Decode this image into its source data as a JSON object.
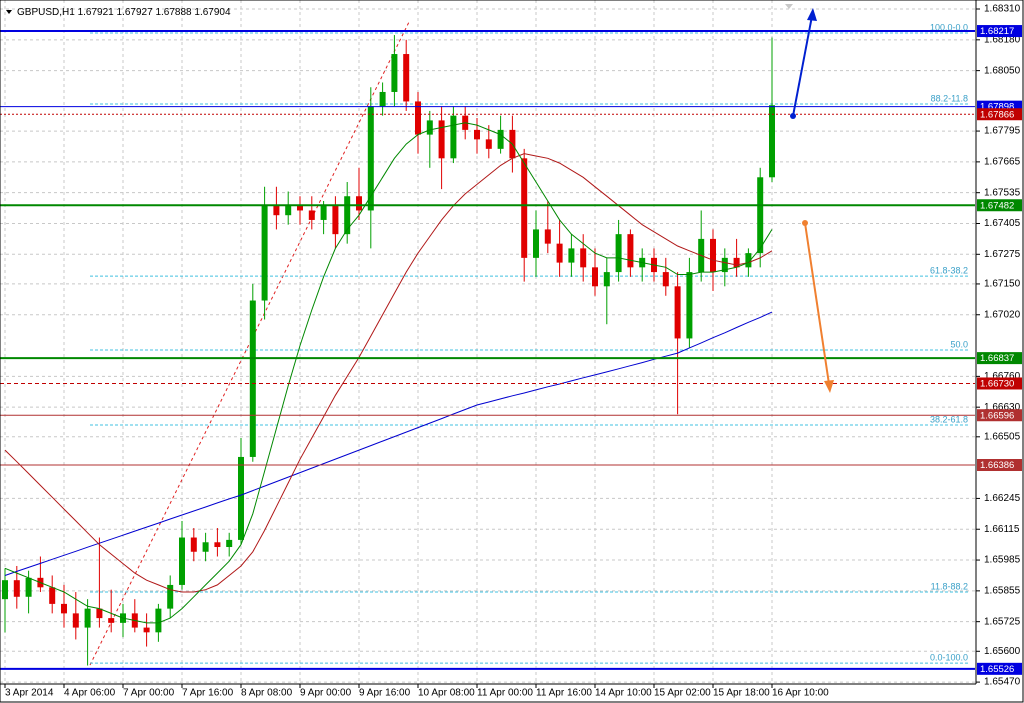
{
  "chart_data": {
    "type": "candlestick",
    "symbol": "GBPUSD,H1",
    "header_prices": [
      1.67921,
      1.67927,
      1.67888,
      1.67904
    ],
    "ylim": [
      1.65462,
      1.68348
    ],
    "yticks": [
      {
        "value": 1.6831,
        "label": "1.68310"
      },
      {
        "value": 1.6818,
        "label": "1.68180"
      },
      {
        "value": 1.6805,
        "label": "1.68050"
      },
      1.67795,
      1.67665,
      1.67535,
      1.67405,
      1.67275,
      {
        "value": 1.6715,
        "label": "1.67150"
      },
      {
        "value": 1.6702,
        "label": "1.67020"
      },
      {
        "value": 1.6676,
        "label": "1.66760"
      },
      {
        "value": 1.6663,
        "label": "1.66630"
      },
      1.66505,
      1.66245,
      1.66115,
      1.65985,
      1.65855,
      1.65725,
      {
        "value": 1.656,
        "label": "1.65600"
      },
      {
        "value": 1.6547,
        "label": "1.65470"
      }
    ],
    "grid": true,
    "up_color": "#00a000",
    "down_color": "#e00000",
    "categories": [
      "3 Apr 2014",
      null,
      null,
      null,
      null,
      "4 Apr 06:00",
      null,
      null,
      null,
      null,
      "7 Apr 00:00",
      null,
      null,
      null,
      null,
      "7 Apr 16:00",
      null,
      null,
      null,
      null,
      "8 Apr 08:00",
      null,
      null,
      null,
      null,
      "9 Apr 00:00",
      null,
      null,
      null,
      null,
      "9 Apr 16:00",
      null,
      null,
      null,
      null,
      "10 Apr 08:00",
      null,
      null,
      null,
      null,
      "11 Apr 00:00",
      null,
      null,
      null,
      null,
      "11 Apr 16:00",
      null,
      null,
      null,
      null,
      "14 Apr 10:00",
      null,
      null,
      null,
      null,
      "15 Apr 02:00",
      null,
      null,
      null,
      null,
      "15 Apr 18:00",
      null,
      null,
      null,
      null,
      "16 Apr 10:00"
    ],
    "open": [
      1.6582,
      1.659,
      1.6583,
      1.6591,
      1.6587,
      1.658,
      1.6576,
      1.657,
      1.6578,
      1.6574,
      1.6572,
      1.6576,
      1.657,
      1.6568,
      1.6578,
      1.6588,
      1.6608,
      1.6602,
      1.6606,
      1.6604,
      1.6607,
      1.6642,
      1.6708,
      1.6748,
      1.6744,
      1.6748,
      1.6746,
      1.6742,
      1.6748,
      1.6736,
      1.6752,
      1.6746,
      1.679,
      1.6796,
      1.6812,
      1.6792,
      1.6778,
      1.6784,
      1.6768,
      1.6786,
      1.678,
      1.6776,
      1.6772,
      1.678,
      1.6768,
      1.6726,
      1.6738,
      1.6732,
      1.6724,
      1.673,
      1.6722,
      1.6714,
      1.672,
      1.6736,
      1.6722,
      1.6726,
      1.672,
      1.6714,
      1.6692,
      1.672,
      1.6734,
      1.672,
      1.6726,
      1.6722,
      1.6728,
      1.676
    ],
    "high": [
      1.6595,
      1.6596,
      1.6594,
      1.66,
      1.6592,
      1.6588,
      1.6585,
      1.6582,
      1.6608,
      1.6586,
      1.658,
      1.6582,
      1.6576,
      1.658,
      1.6592,
      1.6615,
      1.6612,
      1.661,
      1.6612,
      1.661,
      1.665,
      1.6715,
      1.6756,
      1.6756,
      1.6754,
      1.6752,
      1.6752,
      1.675,
      1.6752,
      1.6758,
      1.6764,
      1.6798,
      1.68,
      1.682,
      1.6818,
      1.6796,
      1.6788,
      1.679,
      1.679,
      1.679,
      1.6785,
      1.6782,
      1.6786,
      1.6786,
      1.6772,
      1.6746,
      1.675,
      1.6742,
      1.6736,
      1.6736,
      1.673,
      1.6726,
      1.6742,
      1.6738,
      1.673,
      1.673,
      1.6726,
      1.672,
      1.6726,
      1.6746,
      1.6738,
      1.673,
      1.6734,
      1.673,
      1.6764,
      1.6819
    ],
    "low": [
      1.6568,
      1.6578,
      1.6576,
      1.6585,
      1.6576,
      1.657,
      1.6565,
      1.6554,
      1.657,
      1.6568,
      1.6566,
      1.6568,
      1.6562,
      1.6564,
      1.6574,
      1.6586,
      1.6598,
      1.6598,
      1.66,
      1.66,
      1.6605,
      1.664,
      1.67,
      1.6738,
      1.674,
      1.674,
      1.6738,
      1.6736,
      1.673,
      1.6732,
      1.6742,
      1.673,
      1.6786,
      1.679,
      1.6788,
      1.677,
      1.6764,
      1.6755,
      1.6766,
      1.6776,
      1.677,
      1.6768,
      1.677,
      1.6762,
      1.6716,
      1.6718,
      1.6728,
      1.6718,
      1.6718,
      1.6716,
      1.671,
      1.6698,
      1.6716,
      1.6718,
      1.6716,
      1.6716,
      1.671,
      1.666,
      1.6688,
      1.6716,
      1.6712,
      1.6714,
      1.6718,
      1.6718,
      1.6722,
      1.6758
    ],
    "close": [
      1.659,
      1.6583,
      1.6591,
      1.6587,
      1.658,
      1.6576,
      1.657,
      1.6578,
      1.6574,
      1.6572,
      1.6576,
      1.657,
      1.6568,
      1.6578,
      1.6588,
      1.6608,
      1.6602,
      1.6606,
      1.6604,
      1.6607,
      1.6642,
      1.6708,
      1.6748,
      1.6744,
      1.6748,
      1.6746,
      1.6742,
      1.6748,
      1.6736,
      1.6752,
      1.6746,
      1.679,
      1.6796,
      1.6812,
      1.6792,
      1.6778,
      1.6784,
      1.6768,
      1.6786,
      1.678,
      1.6776,
      1.6772,
      1.678,
      1.6768,
      1.6726,
      1.6738,
      1.6732,
      1.6724,
      1.673,
      1.6722,
      1.6714,
      1.672,
      1.6736,
      1.6722,
      1.6726,
      1.672,
      1.6714,
      1.6692,
      1.672,
      1.6734,
      1.672,
      1.6726,
      1.6722,
      1.6728,
      1.676,
      1.67904
    ],
    "lines": [
      {
        "color": "#0000d0",
        "values": [
          1.6592,
          1.65937,
          1.65954,
          1.65971,
          1.65988,
          1.66005,
          1.66022,
          1.66039,
          1.66056,
          1.66073,
          1.6609,
          1.66107,
          1.66124,
          1.66141,
          1.66158,
          1.66175,
          1.66192,
          1.66209,
          1.66226,
          1.66243,
          1.66259,
          1.66278,
          1.66297,
          1.66316,
          1.66335,
          1.66354,
          1.66373,
          1.66392,
          1.66411,
          1.6643,
          1.66449,
          1.66468,
          1.66487,
          1.66506,
          1.66525,
          1.66544,
          1.66563,
          1.66582,
          1.66601,
          1.6662,
          1.66639,
          1.66652,
          1.66665,
          1.66678,
          1.6669,
          1.66703,
          1.66716,
          1.66728,
          1.66741,
          1.66754,
          1.66766,
          1.66779,
          1.66792,
          1.66805,
          1.66818,
          1.66832,
          1.66845,
          1.66858,
          1.6688,
          1.66901,
          1.66923,
          1.66944,
          1.66966,
          1.66988,
          1.67009,
          1.67031
        ]
      },
      {
        "color": "#b01818",
        "values": [
          1.66449,
          1.664,
          1.6635,
          1.663,
          1.6625,
          1.662,
          1.6615,
          1.661,
          1.6605,
          1.6601,
          1.6597,
          1.6593,
          1.659,
          1.6588,
          1.6586,
          1.6585,
          1.6585,
          1.6586,
          1.6588,
          1.6592,
          1.6596,
          1.6602,
          1.6611,
          1.6621,
          1.6631,
          1.6641,
          1.665,
          1.6659,
          1.6668,
          1.6676,
          1.6684,
          1.6693,
          1.6702,
          1.6711,
          1.672,
          1.6728,
          1.6735,
          1.6742,
          1.6748,
          1.6753,
          1.6757,
          1.6761,
          1.6765,
          1.6768,
          1.677,
          1.6769,
          1.6768,
          1.6766,
          1.6763,
          1.676,
          1.6756,
          1.6752,
          1.6748,
          1.6744,
          1.674,
          1.6737,
          1.6734,
          1.6731,
          1.6729,
          1.6727,
          1.6725,
          1.6724,
          1.6723,
          1.6724,
          1.6726,
          1.6729
        ]
      },
      {
        "color": "#008800",
        "values": [
          1.6595,
          1.6593,
          1.6591,
          1.6589,
          1.6587,
          1.6585,
          1.6582,
          1.6579,
          1.6578,
          1.6576,
          1.6574,
          1.6573,
          1.6572,
          1.6572,
          1.6574,
          1.6578,
          1.6583,
          1.6588,
          1.6593,
          1.6598,
          1.6605,
          1.6618,
          1.6636,
          1.6654,
          1.6672,
          1.6689,
          1.6704,
          1.6718,
          1.673,
          1.6738,
          1.6744,
          1.6752,
          1.676,
          1.6768,
          1.6774,
          1.6778,
          1.678,
          1.6781,
          1.6782,
          1.6783,
          1.6782,
          1.678,
          1.6778,
          1.6774,
          1.6766,
          1.6758,
          1.675,
          1.6742,
          1.6736,
          1.6732,
          1.6728,
          1.6726,
          1.6726,
          1.6725,
          1.6724,
          1.6723,
          1.6722,
          1.6719,
          1.6719,
          1.672,
          1.672,
          1.6721,
          1.6722,
          1.6724,
          1.673,
          1.6738
        ]
      }
    ],
    "levels": [
      {
        "value": 1.68217,
        "color": "#0000e0",
        "width": 2,
        "dash": "none"
      },
      {
        "value": 1.67898,
        "color": "#0000e0",
        "width": 1,
        "dash": "none"
      },
      {
        "value": 1.67866,
        "color": "#c00000",
        "width": 1,
        "dash": "2 2"
      },
      {
        "value": 1.67482,
        "color": "#008800",
        "width": 2,
        "dash": "none"
      },
      {
        "value": 1.66837,
        "color": "#008800",
        "width": 2,
        "dash": "none"
      },
      {
        "value": 1.6673,
        "label": "1.66730",
        "color": "#c00000",
        "width": 1,
        "dash": "4 3"
      },
      {
        "value": 1.66596,
        "color": "#b03030",
        "width": 1,
        "dash": "none"
      },
      {
        "value": 1.66386,
        "color": "#b03030",
        "width": 1,
        "dash": "none"
      },
      {
        "value": 1.65526,
        "color": "#0000e0",
        "width": 2,
        "dash": "none"
      }
    ],
    "fib_levels": [
      {
        "price": 1.68209,
        "text": "100.0-0.0"
      },
      {
        "price": 1.67909,
        "text": "88.2-11.8"
      },
      {
        "price": 1.67183,
        "text": "61.8-38.2"
      },
      {
        "price": 1.66871,
        "text": "50.0"
      },
      {
        "price": 1.66555,
        "text": "38.2-61.8"
      },
      {
        "price": 1.6585,
        "text": "11.8-88.2"
      },
      {
        "price": 1.6555,
        "text": "0.0-100.0"
      }
    ]
  }
}
